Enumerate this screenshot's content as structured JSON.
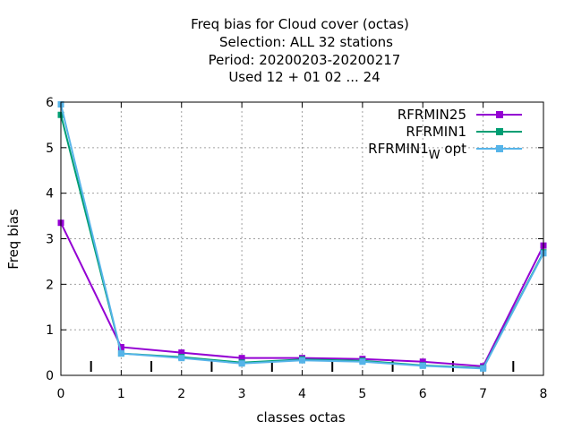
{
  "chart_data": {
    "type": "line",
    "title_lines": [
      "Freq bias  for Cloud cover (octas)",
      "Selection: ALL     32 stations",
      "Period: 20200203-20200217",
      "Used  12 + 01 02 ... 24"
    ],
    "xlabel": "classes octas",
    "ylabel": "Freq bias",
    "xlim": [
      0,
      8
    ],
    "ylim": [
      0,
      6
    ],
    "xticks": [
      "0",
      "1",
      "2",
      "3",
      "4",
      "5",
      "6",
      "7",
      "8"
    ],
    "yticks": [
      "0",
      "1",
      "2",
      "3",
      "4",
      "5",
      "6"
    ],
    "grid": true,
    "legend_position": "top-right",
    "x": [
      0,
      1,
      2,
      3,
      4,
      5,
      6,
      7,
      8
    ],
    "series": [
      {
        "name": "RFRMIN25",
        "color": "#9400d3",
        "values": [
          3.35,
          0.62,
          0.5,
          0.38,
          0.38,
          0.36,
          0.3,
          0.2,
          2.85
        ]
      },
      {
        "name": "RFRMIN1",
        "color": "#009e73",
        "values": [
          5.72,
          0.48,
          0.4,
          0.28,
          0.35,
          0.32,
          0.22,
          0.16,
          2.7
        ]
      },
      {
        "name": "RFRMIN1_W opt",
        "name_main": "RFRMIN1",
        "name_sub": "W",
        "name_rest": " opt",
        "color": "#56b4e9",
        "values": [
          5.95,
          0.48,
          0.38,
          0.26,
          0.33,
          0.3,
          0.21,
          0.15,
          2.68
        ]
      }
    ],
    "extra_tick_marks_x": [
      0.5,
      1.5,
      2.5,
      3.5,
      4.5,
      5.5,
      6.5,
      7.5
    ]
  }
}
